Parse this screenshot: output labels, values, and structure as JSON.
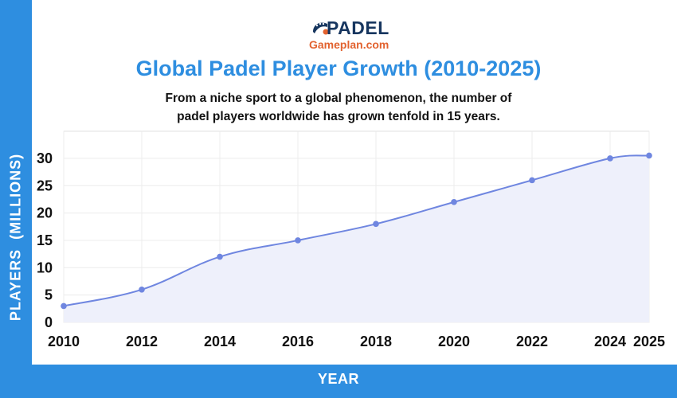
{
  "logo": {
    "main": "PADEL",
    "sub": "Gameplan.com",
    "icon": "padel-racket-ball-icon"
  },
  "colors": {
    "accent_blue": "#2e8ee0",
    "line": "#6f86e0",
    "area_fill": "#eef0fb",
    "logo_navy": "#17365f",
    "logo_orange": "#e2622f"
  },
  "chart_data": {
    "type": "line",
    "title": "Global Padel Player Growth (2010-2025)",
    "subtitle": "From a niche sport to a global phenomenon, the number of padel players worldwide has grown tenfold in 15 years.",
    "subtitle_lines": [
      "From a niche sport to a global phenomenon, the number of",
      "padel players worldwide has grown tenfold in 15 years."
    ],
    "xlabel": "YEAR",
    "ylabel": "PLAYERS  (MILLIONS)",
    "x": [
      "2010",
      "2012",
      "2014",
      "2016",
      "2018",
      "2020",
      "2022",
      "2024",
      "2025"
    ],
    "series": [
      {
        "name": "Padel players (millions)",
        "values": [
          3,
          6,
          12,
          15,
          18,
          22,
          26,
          30,
          30.5
        ]
      }
    ],
    "y_ticks": [
      "0",
      "5",
      "10",
      "15",
      "20",
      "25",
      "30"
    ],
    "ylim": [
      0,
      35
    ],
    "grid": true,
    "legend": "none",
    "area_filled": true,
    "markers": true
  }
}
